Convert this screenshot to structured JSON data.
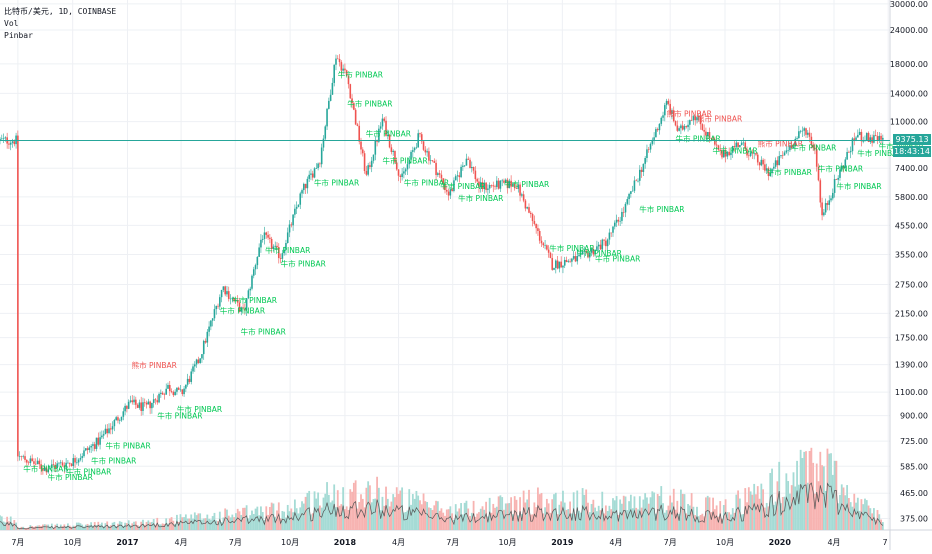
{
  "legend": {
    "symbol": "比特币/美元, 1D, COINBASE",
    "vol": "Vol",
    "indicator": "Pinbar"
  },
  "price_badge": {
    "price": "9375.13",
    "countdown": "18:43:14",
    "color": "#26a69a"
  },
  "colors": {
    "up": "#26a69a",
    "down": "#ef5350",
    "bull_text": "#00c853",
    "bear_text": "#ef5350",
    "grid": "#eef0f4",
    "vol_up": "#a5dbd5",
    "vol_down": "#f7b3b1"
  },
  "chart_data": {
    "type": "candlestick",
    "y_scale": "log",
    "ylim": [
      340,
      31000
    ],
    "price_ticks": [
      "30000.00",
      "24000.00",
      "18000.00",
      "14000.00",
      "11000.00",
      "7400.00",
      "5800.00",
      "4550.00",
      "3550.00",
      "2750.00",
      "2150.00",
      "1750.00",
      "1390.00",
      "1100.00",
      "900.00",
      "725.00",
      "585.00",
      "465.00",
      "375.00"
    ],
    "time_labels": [
      "7月",
      "10月",
      "2017",
      "4月",
      "7月",
      "10月",
      "2018",
      "4月",
      "7月",
      "10月",
      "2019",
      "4月",
      "7月",
      "10月",
      "2020",
      "4月",
      "7"
    ],
    "price_path": [
      [
        "2016-07-01",
        640
      ],
      [
        "2016-08-15",
        575
      ],
      [
        "2016-10-01",
        610
      ],
      [
        "2016-11-15",
        730
      ],
      [
        "2017-01-05",
        1000
      ],
      [
        "2017-02-01",
        960
      ],
      [
        "2017-03-10",
        1150
      ],
      [
        "2017-04-01",
        1080
      ],
      [
        "2017-05-01",
        1450
      ],
      [
        "2017-06-10",
        2700
      ],
      [
        "2017-07-15",
        2150
      ],
      [
        "2017-08-15",
        4200
      ],
      [
        "2017-09-15",
        3500
      ],
      [
        "2017-10-20",
        6000
      ],
      [
        "2017-11-20",
        8000
      ],
      [
        "2017-12-17",
        19400
      ],
      [
        "2018-01-05",
        16000
      ],
      [
        "2018-02-06",
        6900
      ],
      [
        "2018-03-05",
        11200
      ],
      [
        "2018-04-06",
        6700
      ],
      [
        "2018-05-05",
        9700
      ],
      [
        "2018-06-25",
        5900
      ],
      [
        "2018-07-25",
        8200
      ],
      [
        "2018-08-15",
        6300
      ],
      [
        "2018-10-15",
        6500
      ],
      [
        "2018-11-20",
        4300
      ],
      [
        "2018-12-15",
        3250
      ],
      [
        "2019-02-01",
        3450
      ],
      [
        "2019-03-15",
        3950
      ],
      [
        "2019-04-15",
        5200
      ],
      [
        "2019-05-20",
        8000
      ],
      [
        "2019-06-26",
        13000
      ],
      [
        "2019-07-15",
        10000
      ],
      [
        "2019-08-10",
        11800
      ],
      [
        "2019-09-25",
        8200
      ],
      [
        "2019-10-25",
        9200
      ],
      [
        "2019-12-15",
        7100
      ],
      [
        "2020-01-15",
        8800
      ],
      [
        "2020-02-13",
        10400
      ],
      [
        "2020-03-01",
        8600
      ],
      [
        "2020-03-12",
        4900
      ],
      [
        "2020-04-01",
        6400
      ],
      [
        "2020-05-08",
        9800
      ],
      [
        "2020-06-01",
        9500
      ],
      [
        "2020-06-24",
        9375
      ]
    ],
    "volume_profile": [
      [
        "2016-07-01",
        0.05
      ],
      [
        "2017-01-05",
        0.1
      ],
      [
        "2017-06-10",
        0.22
      ],
      [
        "2017-09-15",
        0.3
      ],
      [
        "2017-12-17",
        0.55
      ],
      [
        "2018-02-06",
        0.6
      ],
      [
        "2018-06-25",
        0.28
      ],
      [
        "2018-11-20",
        0.45
      ],
      [
        "2019-05-20",
        0.4
      ],
      [
        "2019-06-26",
        0.5
      ],
      [
        "2019-09-25",
        0.3
      ],
      [
        "2020-03-12",
        1.0
      ],
      [
        "2020-05-08",
        0.45
      ],
      [
        "2020-06-24",
        0.15
      ]
    ],
    "pinbar_markers": [
      {
        "date": "2016-07-10",
        "price": 560,
        "type": "bull",
        "text": "牛市 PINBAR"
      },
      {
        "date": "2016-08-20",
        "price": 520,
        "type": "bull",
        "text": "牛市 PINBAR"
      },
      {
        "date": "2016-09-20",
        "price": 545,
        "type": "bull",
        "text": "牛市 PINBAR"
      },
      {
        "date": "2016-11-01",
        "price": 600,
        "type": "bull",
        "text": "牛市 PINBAR"
      },
      {
        "date": "2016-11-25",
        "price": 680,
        "type": "bull",
        "text": "牛市 PINBAR"
      },
      {
        "date": "2017-01-08",
        "price": 1350,
        "type": "bear",
        "text": "熊市 PINBAR"
      },
      {
        "date": "2017-02-20",
        "price": 880,
        "type": "bull",
        "text": "牛市 PINBAR"
      },
      {
        "date": "2017-03-25",
        "price": 930,
        "type": "bull",
        "text": "牛市 PINBAR"
      },
      {
        "date": "2017-06-05",
        "price": 2150,
        "type": "bull",
        "text": "牛市 PINBAR"
      },
      {
        "date": "2017-06-25",
        "price": 2350,
        "type": "bull",
        "text": "牛市 PINBAR"
      },
      {
        "date": "2017-07-10",
        "price": 1800,
        "type": "bull",
        "text": "牛市 PINBAR"
      },
      {
        "date": "2017-08-20",
        "price": 3600,
        "type": "bull",
        "text": "牛市 PINBAR"
      },
      {
        "date": "2017-09-15",
        "price": 3200,
        "type": "bull",
        "text": "牛市 PINBAR"
      },
      {
        "date": "2017-11-10",
        "price": 6400,
        "type": "bull",
        "text": "牛市 PINBAR"
      },
      {
        "date": "2017-12-20",
        "price": 16000,
        "type": "bull",
        "text": "牛市 PINBAR"
      },
      {
        "date": "2018-01-05",
        "price": 12500,
        "type": "bull",
        "text": "牛市 PINBAR"
      },
      {
        "date": "2018-02-05",
        "price": 9700,
        "type": "bull",
        "text": "牛市 PINBAR"
      },
      {
        "date": "2018-03-05",
        "price": 7700,
        "type": "bull",
        "text": "牛市 PINBAR"
      },
      {
        "date": "2018-04-10",
        "price": 6400,
        "type": "bull",
        "text": "牛市 PINBAR"
      },
      {
        "date": "2018-06-10",
        "price": 6200,
        "type": "bull",
        "text": "牛市 PINBAR"
      },
      {
        "date": "2018-07-10",
        "price": 5600,
        "type": "bull",
        "text": "牛市 PINBAR"
      },
      {
        "date": "2018-09-25",
        "price": 6300,
        "type": "bull",
        "text": "牛市 PINBAR"
      },
      {
        "date": "2018-12-10",
        "price": 3650,
        "type": "bull",
        "text": "牛市 PINBAR"
      },
      {
        "date": "2019-01-25",
        "price": 3500,
        "type": "bull",
        "text": "牛市 PINBAR"
      },
      {
        "date": "2019-02-25",
        "price": 3350,
        "type": "bull",
        "text": "牛市 PINBAR"
      },
      {
        "date": "2019-05-10",
        "price": 5100,
        "type": "bull",
        "text": "牛市 PINBAR"
      },
      {
        "date": "2019-06-25",
        "price": 11500,
        "type": "bear",
        "text": "熊市 PINBAR"
      },
      {
        "date": "2019-07-10",
        "price": 9300,
        "type": "bull",
        "text": "牛市 PINBAR"
      },
      {
        "date": "2019-08-15",
        "price": 11000,
        "type": "bear",
        "text": "熊市 PINBAR"
      },
      {
        "date": "2019-09-10",
        "price": 8400,
        "type": "bull",
        "text": "牛市 PINBAR"
      },
      {
        "date": "2019-11-25",
        "price": 8900,
        "type": "bear",
        "text": "熊市 PINBAR"
      },
      {
        "date": "2019-12-10",
        "price": 7000,
        "type": "bull",
        "text": "牛市 PINBAR"
      },
      {
        "date": "2020-01-20",
        "price": 8600,
        "type": "bull",
        "text": "牛市 PINBAR"
      },
      {
        "date": "2020-03-05",
        "price": 7200,
        "type": "bull",
        "text": "牛市 PINBAR"
      },
      {
        "date": "2020-04-05",
        "price": 6200,
        "type": "bull",
        "text": "牛市 PINBAR"
      },
      {
        "date": "2020-05-10",
        "price": 8200,
        "type": "bull",
        "text": "牛市 PINBAR"
      },
      {
        "date": "2020-06-15",
        "price": 8700,
        "type": "bull",
        "text": "牛市 PINBAR"
      }
    ]
  }
}
